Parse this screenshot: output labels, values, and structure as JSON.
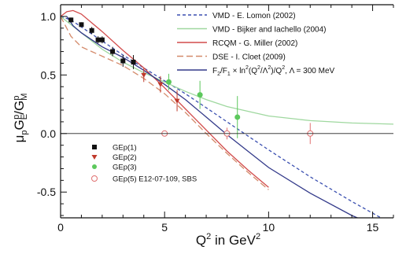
{
  "chart_data": {
    "type": "line",
    "xlim": [
      0,
      16
    ],
    "ylim": [
      -0.72,
      1.1
    ],
    "x_ticks": [
      0,
      5,
      10,
      15
    ],
    "y_ticks": [
      -0.5,
      0.0,
      0.5,
      1.0
    ],
    "x_tick_labels": [
      "0",
      "5",
      "10",
      "15"
    ],
    "y_tick_labels": [
      "-0.5",
      "0.0",
      "0.5",
      "1.0"
    ],
    "xlabel": {
      "base": "Q",
      "sup": "2",
      "mid": " in GeV",
      "sup2": "2"
    },
    "ylabel": {
      "mu": "μ",
      "p1": "p",
      "G": "G",
      "E": "E",
      "p2": "p",
      "slash": "/G",
      "M": "M",
      "p3": "p"
    },
    "zero_line": true,
    "legend_theory": [
      {
        "label": "VMD - E. Lomon (2002)",
        "color": "#3a4fb0",
        "dash": "4,3"
      },
      {
        "label": "VMD - Bijker and Iachello (2004)",
        "color": "#9fd89f",
        "dash": ""
      },
      {
        "label": "RCQM - G. Miller (2002)",
        "color": "#d24b4b",
        "dash": ""
      },
      {
        "label": "DSE - I. Cloet (2009)",
        "color": "#d48a6a",
        "dash": "8,4"
      },
      {
        "label": "F2/F1 formula",
        "color": "#333a8a",
        "dash": "",
        "formula": {
          "a": "F",
          "a_sub": "2",
          "b": "/F",
          "b_sub": "1",
          "c": " × ln",
          "d_sup": "2",
          "e": "(Q",
          "e_sup": "2",
          "f": "/Λ",
          "f_sup": "2",
          "g": ")/Q",
          "g_sup": "2",
          "h": ", Λ = 300 MeV"
        }
      }
    ],
    "legend_data": [
      {
        "label": "GEp(1)",
        "color": "#111111",
        "marker": "square"
      },
      {
        "label": "GEp(2)",
        "color": "#c0392b",
        "marker": "triangle"
      },
      {
        "label": "GEp(3)",
        "color": "#5cc85c",
        "marker": "circle"
      },
      {
        "label": "GEp(5) E12-07-109, SBS",
        "color": "#e07070",
        "marker": "open-circle"
      }
    ],
    "series": [
      {
        "name": "VMD - E. Lomon (2002)",
        "color": "#3a4fb0",
        "dash": "4,3",
        "x": [
          0,
          0.5,
          1,
          2,
          3,
          4,
          5,
          6,
          7,
          8,
          9,
          10,
          12,
          14,
          16
        ],
        "y": [
          1.0,
          0.97,
          0.91,
          0.79,
          0.67,
          0.56,
          0.45,
          0.34,
          0.22,
          0.1,
          -0.02,
          -0.14,
          -0.37,
          -0.58,
          -0.78
        ]
      },
      {
        "name": "VMD - Bijker and Iachello (2004)",
        "color": "#9fd89f",
        "dash": "",
        "x": [
          0,
          1,
          2,
          3,
          4,
          5,
          6,
          7,
          8,
          10,
          12,
          14,
          16
        ],
        "y": [
          1.0,
          0.86,
          0.72,
          0.61,
          0.52,
          0.44,
          0.36,
          0.29,
          0.23,
          0.15,
          0.11,
          0.09,
          0.08
        ]
      },
      {
        "name": "RCQM - G. Miller (2002)",
        "color": "#d24b4b",
        "dash": "",
        "x": [
          0,
          0.3,
          0.6,
          1,
          2,
          3,
          4,
          5,
          6,
          7,
          8,
          9,
          10
        ],
        "y": [
          1.0,
          1.04,
          1.05,
          1.02,
          0.87,
          0.71,
          0.56,
          0.39,
          0.21,
          0.03,
          -0.15,
          -0.31,
          -0.46
        ]
      },
      {
        "name": "DSE - I. Cloet (2009)",
        "color": "#d48a6a",
        "dash": "8,4",
        "x": [
          0,
          0.5,
          1,
          1.5,
          2,
          3,
          4,
          5,
          6,
          7,
          8,
          9,
          10
        ],
        "y": [
          1.0,
          0.83,
          0.74,
          0.7,
          0.66,
          0.58,
          0.47,
          0.34,
          0.18,
          0.0,
          -0.17,
          -0.33,
          -0.48
        ]
      },
      {
        "name": "F2/F1 formula",
        "color": "#333a8a",
        "dash": "",
        "x": [
          0.3,
          0.6,
          1,
          1.5,
          2,
          3,
          4,
          5,
          6,
          7,
          8,
          9,
          10,
          12,
          14,
          16
        ],
        "y": [
          1.0,
          0.92,
          0.86,
          0.8,
          0.74,
          0.65,
          0.54,
          0.42,
          0.29,
          0.14,
          -0.01,
          -0.15,
          -0.29,
          -0.51,
          -0.7,
          -0.85
        ]
      }
    ],
    "data_points": {
      "GEp(1)": {
        "color": "#111111",
        "marker": "square",
        "x": [
          0.5,
          1.0,
          1.5,
          1.8,
          2.0,
          2.5,
          3.0,
          3.5
        ],
        "y": [
          0.97,
          0.93,
          0.88,
          0.8,
          0.8,
          0.7,
          0.62,
          0.61
        ],
        "err": [
          0.02,
          0.02,
          0.03,
          0.03,
          0.03,
          0.04,
          0.05,
          0.06
        ]
      },
      "GEp(2)": {
        "color": "#c0392b",
        "marker": "triangle",
        "x": [
          4.0,
          4.8,
          5.6
        ],
        "y": [
          0.5,
          0.42,
          0.28
        ],
        "err": [
          0.06,
          0.07,
          0.09
        ]
      },
      "GEp(3)": {
        "color": "#5cc85c",
        "marker": "circle",
        "x": [
          5.2,
          6.7,
          8.5
        ],
        "y": [
          0.44,
          0.33,
          0.14
        ],
        "err": [
          0.07,
          0.12,
          0.18
        ]
      },
      "GEp(5) E12-07-109, SBS": {
        "color": "#e07070",
        "marker": "open-circle",
        "x": [
          5.0,
          8.0,
          12.0
        ],
        "y": [
          0.0,
          0.0,
          0.0
        ],
        "err": [
          0.02,
          0.05,
          0.09
        ]
      }
    }
  }
}
